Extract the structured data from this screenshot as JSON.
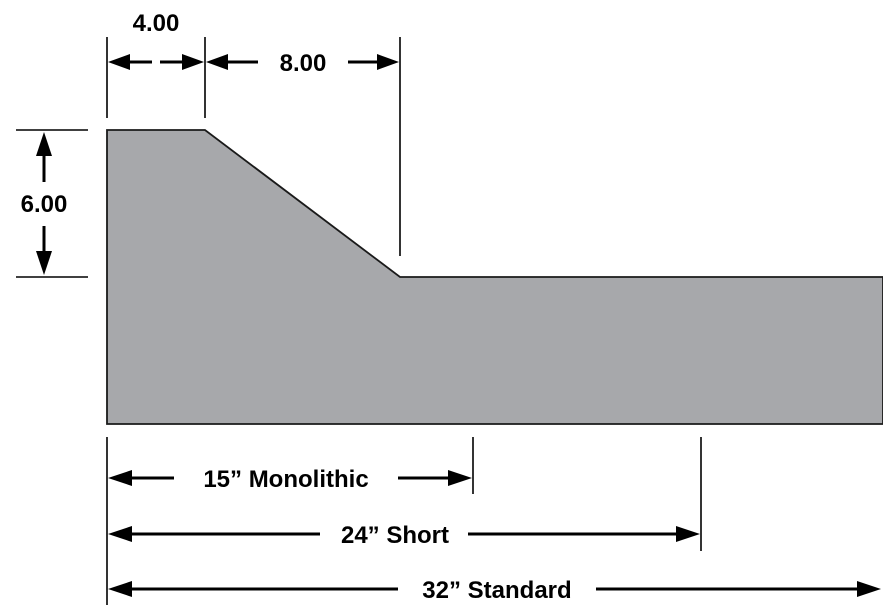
{
  "colors": {
    "profile_fill": "#a7a8ab",
    "line": "#000000"
  },
  "dimensions": {
    "top_flat": "4.00",
    "slope_run": "8.00",
    "height": "6.00"
  },
  "lengths": {
    "monolithic": "15” Monolithic",
    "short": "24” Short",
    "standard": "32” Standard"
  }
}
